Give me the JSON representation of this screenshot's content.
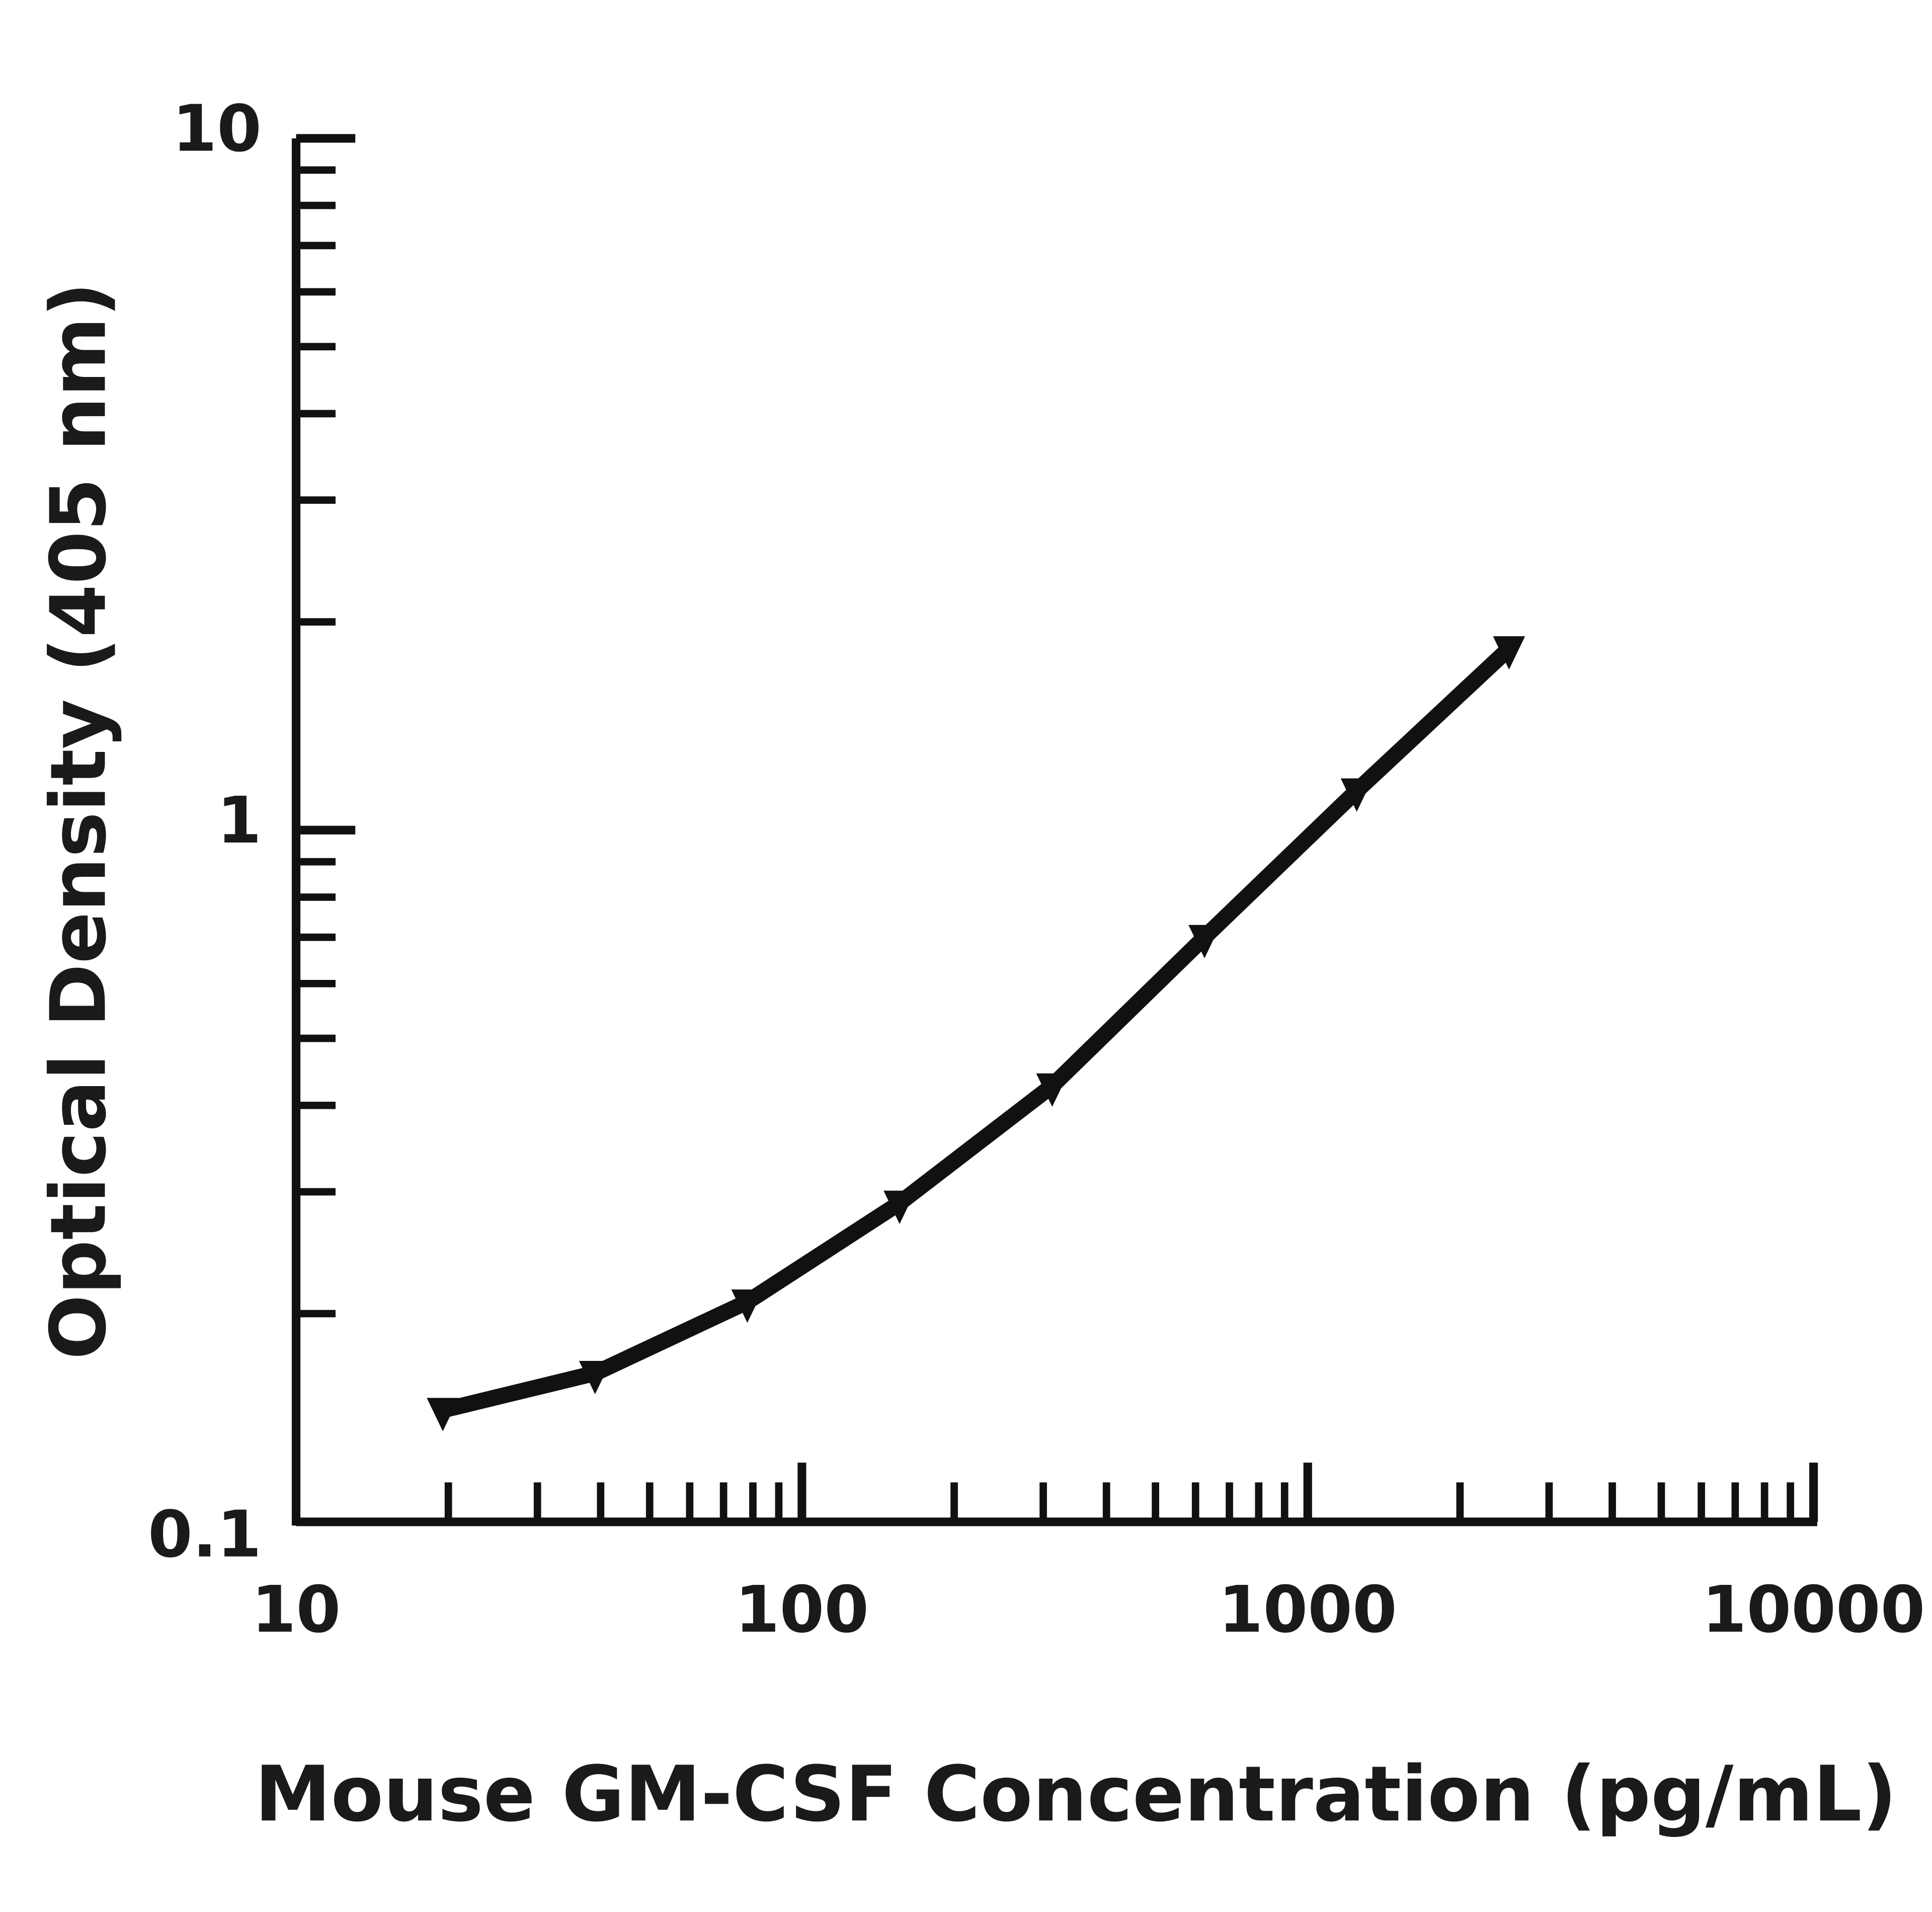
{
  "chart_data": {
    "type": "line",
    "title": "",
    "xlabel": "Mouse GM-CSF Concentration (pg/mL)",
    "ylabel": "Optical Density (405 nm)",
    "xscale": "log",
    "yscale": "log",
    "xlim": [
      10,
      10000
    ],
    "ylim": [
      0.1,
      10
    ],
    "xticks": [
      "10",
      "100",
      "1000",
      "10000"
    ],
    "yticks": [
      "0.1",
      "1",
      "10"
    ],
    "grid": false,
    "legend": "none",
    "series": [
      {
        "x": [
          19.5,
          39,
          78,
          156,
          312.5,
          625,
          1250,
          2500
        ],
        "y": [
          0.145,
          0.164,
          0.208,
          0.289,
          0.427,
          0.7,
          1.14,
          1.83
        ],
        "color": "#111111"
      }
    ]
  }
}
